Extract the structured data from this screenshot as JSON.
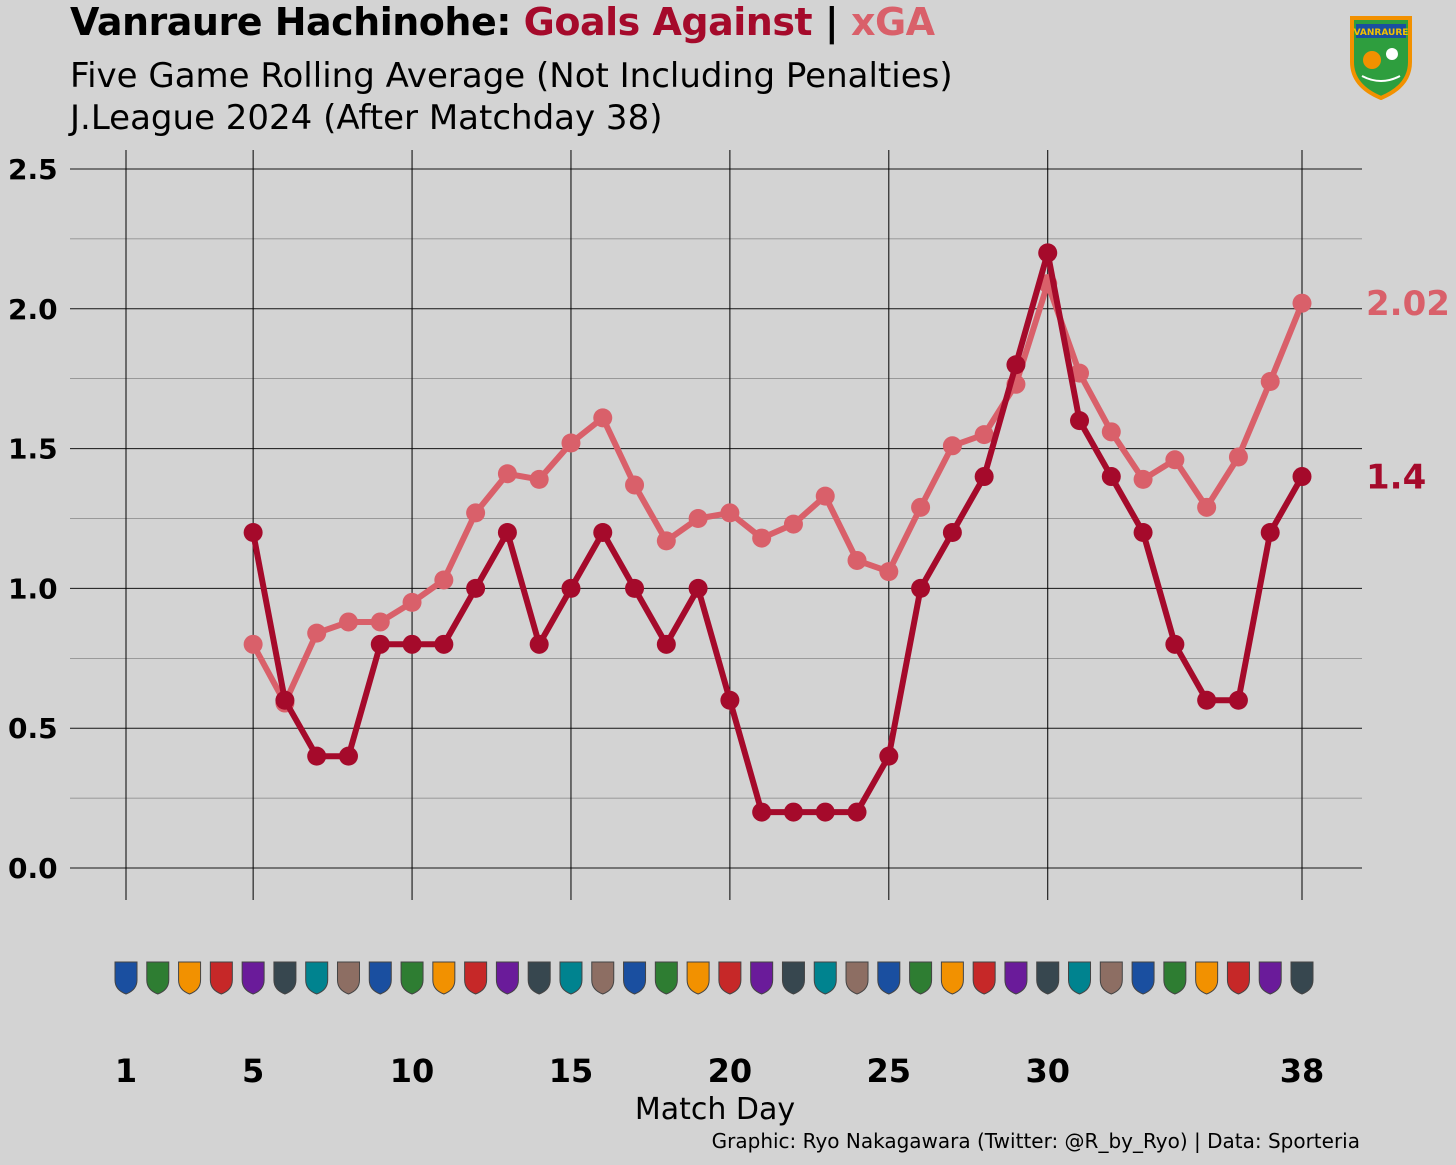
{
  "header": {
    "title_team": "Vanraure Hachinohe:",
    "title_ga": "Goals Against",
    "title_sep": "|",
    "title_xga": "xGA",
    "subtitle_1": "Five Game Rolling Average (Not Including Penalties)",
    "subtitle_2": "J.League 2024 (After Matchday 38)",
    "crest_text": "VANRAURE"
  },
  "credit": "Graphic: Ryo Nakagawara (Twitter: @R_by_Ryo) | Data: Sporteria",
  "colors": {
    "background": "#d3d3d3",
    "goals_against": "#a50a2b",
    "xga": "#d9606a",
    "grid": "#000000",
    "crest_green": "#2e9e3e",
    "crest_orange": "#f29100",
    "crest_blue": "#1a4fa0"
  },
  "opponent_badges": [
    "badge",
    "badge",
    "badge",
    "badge",
    "badge",
    "badge",
    "badge",
    "badge",
    "badge",
    "badge",
    "badge",
    "badge",
    "badge",
    "badge",
    "badge",
    "badge",
    "badge",
    "badge",
    "badge",
    "badge",
    "badge",
    "badge",
    "badge",
    "badge",
    "badge",
    "badge",
    "badge",
    "badge",
    "badge",
    "badge",
    "badge",
    "badge",
    "badge",
    "badge",
    "badge",
    "badge",
    "badge",
    "badge"
  ],
  "chart_data": {
    "type": "line",
    "xlabel": "Match Day",
    "ylabel": "",
    "xlim": [
      1,
      38
    ],
    "ylim": [
      0,
      2.5
    ],
    "x_ticks": [
      1,
      5,
      10,
      15,
      20,
      25,
      30,
      38
    ],
    "y_ticks": [
      "0.0",
      "0.5",
      "1.0",
      "1.5",
      "2.0",
      "2.5"
    ],
    "y_tick_values": [
      0,
      0.5,
      1.0,
      1.5,
      2.0,
      2.5
    ],
    "grid": true,
    "series": [
      {
        "key": "xga",
        "color": "#d9606a",
        "end_label": "2.02",
        "x": [
          5,
          6,
          7,
          8,
          9,
          10,
          11,
          12,
          13,
          14,
          15,
          16,
          17,
          18,
          19,
          20,
          21,
          22,
          23,
          24,
          25,
          26,
          27,
          28,
          29,
          30,
          31,
          32,
          33,
          34,
          35,
          36,
          37,
          38
        ],
        "values": [
          0.8,
          0.59,
          0.84,
          0.88,
          0.88,
          0.95,
          1.03,
          1.27,
          1.41,
          1.39,
          1.52,
          1.61,
          1.37,
          1.17,
          1.25,
          1.27,
          1.18,
          1.23,
          1.33,
          1.1,
          1.06,
          1.29,
          1.51,
          1.55,
          1.73,
          2.09,
          1.77,
          1.56,
          1.39,
          1.46,
          1.29,
          1.47,
          1.74,
          2.02
        ]
      },
      {
        "key": "goals_against",
        "color": "#a50a2b",
        "end_label": "1.4",
        "x": [
          5,
          6,
          7,
          8,
          9,
          10,
          11,
          12,
          13,
          14,
          15,
          16,
          17,
          18,
          19,
          20,
          21,
          22,
          23,
          24,
          25,
          26,
          27,
          28,
          29,
          30,
          31,
          32,
          33,
          34,
          35,
          36,
          37,
          38
        ],
        "values": [
          1.2,
          0.6,
          0.4,
          0.4,
          0.8,
          0.8,
          0.8,
          1.0,
          1.2,
          0.8,
          1.0,
          1.2,
          1.0,
          0.8,
          1.0,
          0.6,
          0.2,
          0.2,
          0.2,
          0.2,
          0.4,
          1.0,
          1.2,
          1.4,
          1.8,
          2.2,
          1.6,
          1.4,
          1.2,
          0.8,
          0.6,
          0.6,
          1.2,
          1.4
        ]
      }
    ]
  }
}
